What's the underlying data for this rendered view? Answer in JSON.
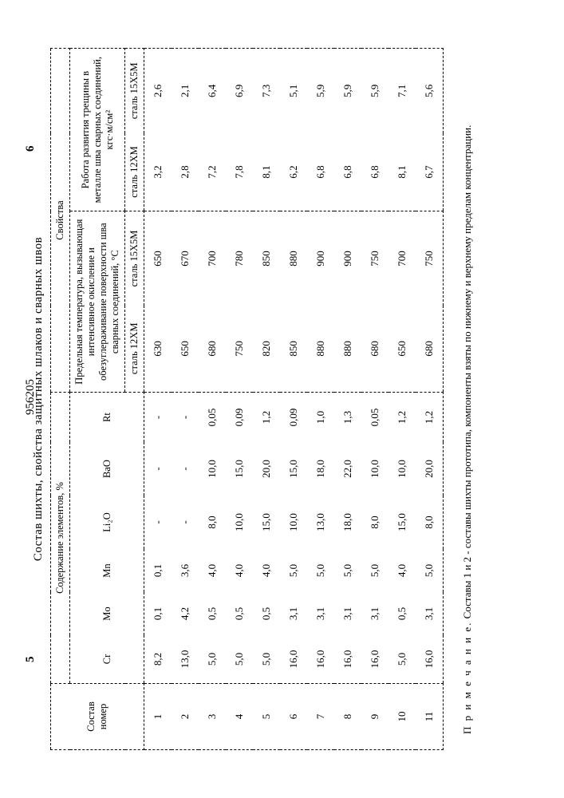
{
  "patent_no": "956205",
  "page_left": "5",
  "page_right": "6",
  "table_title": "Состав шихты, свойства защитных шлаков и сварных швов",
  "headers": {
    "col_num": "Состав номер",
    "group_content": "Содержание элементов, %",
    "group_props": "Свойства",
    "props_temp": "Предельная температура, вызывающая интенсивное окисление и обезуглераживание поверхности шва сварных соединений, °С",
    "props_crack": "Работа развития трещины в металле шва сварных соединений, кгс·м/см²",
    "cr": "Cr",
    "mo": "Mo",
    "mn": "Mn",
    "li2o": "Li₂O",
    "bao": "BaO",
    "rt": "Rt",
    "steel_12xm": "сталь 12ХМ",
    "steel_15x5m": "сталь 15Х5М"
  },
  "rows": [
    {
      "n": "1",
      "cr": "8,2",
      "mo": "0,1",
      "mn": "0,1",
      "li2o": "-",
      "bao": "-",
      "rt": "-",
      "t12": "630",
      "t15": "650",
      "c12": "3,2",
      "c15": "2,6"
    },
    {
      "n": "2",
      "cr": "13,0",
      "mo": "4,2",
      "mn": "3,6",
      "li2o": "-",
      "bao": "-",
      "rt": "-",
      "t12": "650",
      "t15": "670",
      "c12": "2,8",
      "c15": "2,1"
    },
    {
      "n": "3",
      "cr": "5,0",
      "mo": "0,5",
      "mn": "4,0",
      "li2o": "8,0",
      "bao": "10,0",
      "rt": "0,05",
      "t12": "680",
      "t15": "700",
      "c12": "7,2",
      "c15": "6,4"
    },
    {
      "n": "4",
      "cr": "5,0",
      "mo": "0,5",
      "mn": "4,0",
      "li2o": "10,0",
      "bao": "15,0",
      "rt": "0,09",
      "t12": "750",
      "t15": "780",
      "c12": "7,8",
      "c15": "6,9"
    },
    {
      "n": "5",
      "cr": "5,0",
      "mo": "0,5",
      "mn": "4,0",
      "li2o": "15,0",
      "bao": "20,0",
      "rt": "1,2",
      "t12": "820",
      "t15": "850",
      "c12": "8,1",
      "c15": "7,3"
    },
    {
      "n": "6",
      "cr": "16,0",
      "mo": "3,1",
      "mn": "5,0",
      "li2o": "10,0",
      "bao": "15,0",
      "rt": "0,09",
      "t12": "850",
      "t15": "880",
      "c12": "6,2",
      "c15": "5,1"
    },
    {
      "n": "7",
      "cr": "16,0",
      "mo": "3,1",
      "mn": "5,0",
      "li2o": "13,0",
      "bao": "18,0",
      "rt": "1,0",
      "t12": "880",
      "t15": "900",
      "c12": "6,8",
      "c15": "5,9"
    },
    {
      "n": "8",
      "cr": "16,0",
      "mo": "3,1",
      "mn": "5,0",
      "li2o": "18,0",
      "bao": "22,0",
      "rt": "1,3",
      "t12": "880",
      "t15": "900",
      "c12": "6,8",
      "c15": "5,9"
    },
    {
      "n": "9",
      "cr": "16,0",
      "mo": "3,1",
      "mn": "5,0",
      "li2o": "8,0",
      "bao": "10,0",
      "rt": "0,05",
      "t12": "680",
      "t15": "750",
      "c12": "6,8",
      "c15": "5,9"
    },
    {
      "n": "10",
      "cr": "5,0",
      "mo": "0,5",
      "mn": "4,0",
      "li2o": "15,0",
      "bao": "10,0",
      "rt": "1,2",
      "t12": "650",
      "t15": "700",
      "c12": "8,1",
      "c15": "7,1"
    },
    {
      "n": "11",
      "cr": "16,0",
      "mo": "3,1",
      "mn": "5,0",
      "li2o": "8,0",
      "bao": "20,0",
      "rt": "1,2",
      "t12": "680",
      "t15": "750",
      "c12": "6,7",
      "c15": "5,6"
    }
  ],
  "footnote_lead": "П р и м е ч а н и е.",
  "footnote_text": " Составы 1 и 2 - составы шихты прототипа, компоненты взяты по нижнему и верхнему пределам концентрации."
}
